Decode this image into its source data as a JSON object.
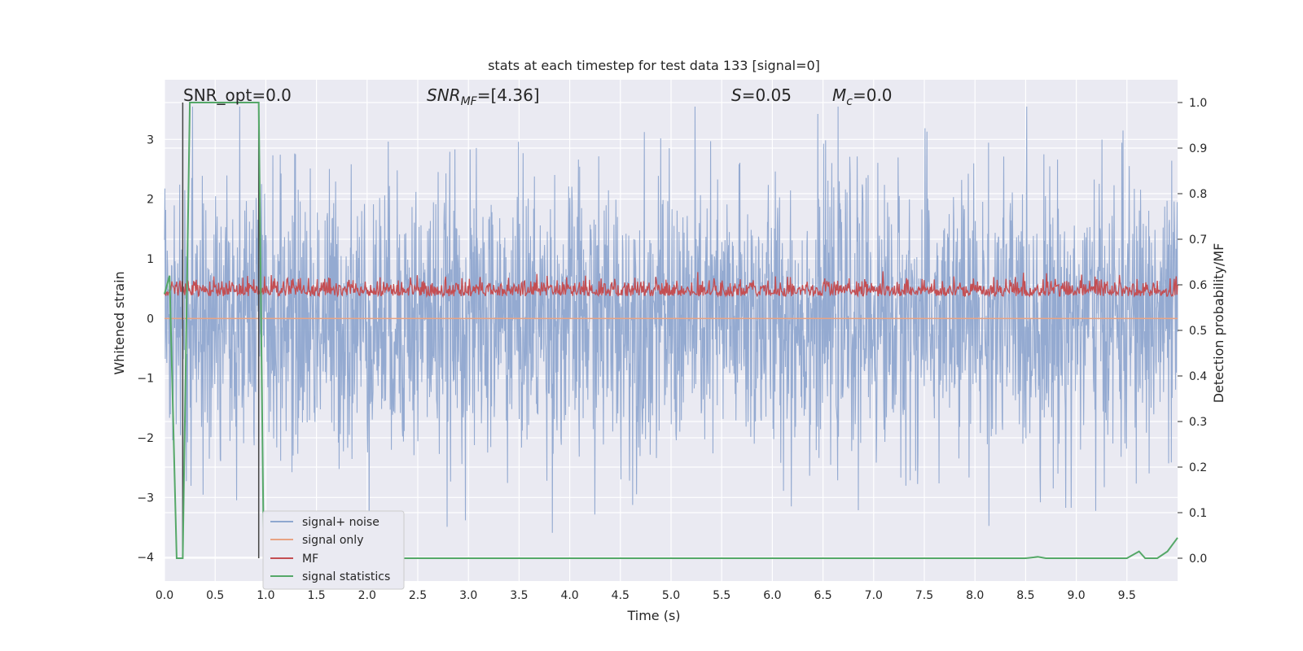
{
  "chart_data": {
    "type": "line",
    "title": "stats at each timestep for test data 133 [signal=0]",
    "xlabel": "Time (s)",
    "ylabel": "Whitened strain",
    "y2label": "Detection probability/MF",
    "xlim": [
      0.0,
      10.0
    ],
    "ylim": [
      -4.4,
      4.0
    ],
    "y2lim": [
      -0.05,
      1.05
    ],
    "grid": true,
    "legend_placement": "lower-left",
    "x_ticks": [
      "0.0",
      "0.5",
      "1.0",
      "1.5",
      "2.0",
      "2.5",
      "3.0",
      "3.5",
      "4.0",
      "4.5",
      "5.0",
      "5.5",
      "6.0",
      "6.5",
      "7.0",
      "7.5",
      "8.0",
      "8.5",
      "9.0",
      "9.5"
    ],
    "y_ticks": [
      "−4",
      "−3",
      "−2",
      "−1",
      "0",
      "1",
      "2",
      "3"
    ],
    "y2_ticks": [
      "0.0",
      "0.1",
      "0.2",
      "0.3",
      "0.4",
      "0.5",
      "0.6",
      "0.7",
      "0.8",
      "0.9",
      "1.0"
    ],
    "annotations": {
      "snr_opt": "SNR_opt=0.0",
      "snr_mf_base": "SNR",
      "snr_mf_sub": "MF",
      "snr_mf_val": "=[4.36]",
      "s_var": "S",
      "s_val": "=0.05",
      "mc_var": "M",
      "mc_sub": "c",
      "mc_val": "=0.0"
    },
    "series": [
      {
        "name": "signal+ noise",
        "color": "#8fa7cf",
        "axis": "left",
        "y_range": [
          -4.1,
          3.55
        ],
        "description": "dense noise trace, amplitude mostly within ±2"
      },
      {
        "name": "signal only",
        "color": "#e8a383",
        "axis": "left",
        "values": [
          0,
          0
        ]
      },
      {
        "name": "MF",
        "color": "#c44e52",
        "axis": "right",
        "y_range": [
          0.54,
          0.66
        ]
      },
      {
        "name": "signal statistics",
        "color": "#55a868",
        "axis": "right",
        "x": [
          0.0,
          0.05,
          0.12,
          0.18,
          0.25,
          0.93,
          0.98,
          1.05,
          1.5,
          2.5,
          3.5,
          4.5,
          5.5,
          6.5,
          7.5,
          8.5,
          8.62,
          8.7,
          9.0,
          9.5,
          9.62,
          9.68,
          9.8,
          9.9,
          10.0
        ],
        "y": [
          0.58,
          0.62,
          0.0,
          0.0,
          1.0,
          1.0,
          0.0,
          0.0,
          0.0,
          0.0,
          0.0,
          0.0,
          0.0,
          0.0,
          0.0,
          0.0,
          0.003,
          0.0,
          0.0,
          0.0,
          0.015,
          0.0,
          0.0,
          0.015,
          0.045
        ]
      }
    ],
    "vertical_lines": [
      0.18,
      0.93
    ],
    "colors": {
      "plot_background": "#eaeaf2",
      "grid": "#ffffff",
      "vertical_line": "#444444"
    }
  }
}
